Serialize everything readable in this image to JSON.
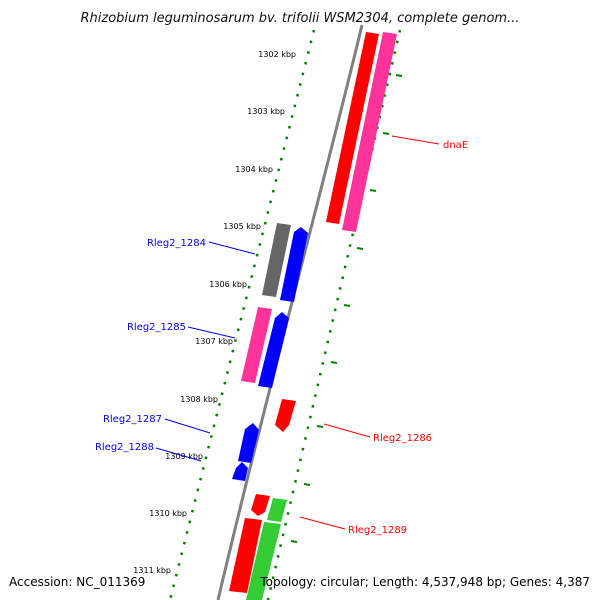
{
  "map": {
    "title": "Rhizobium leguminosarum bv. trifolii WSM2304, complete genom...",
    "accession": "Accession: NC_011369",
    "topology": "Topology: circular; Length: 4,537,948 bp; Genes: 4,387",
    "tick_labels": [
      "1302 kbp",
      "1303 kbp",
      "1304 kbp",
      "1305 kbp",
      "1306 kbp",
      "1307 kbp",
      "1308 kbp",
      "1309 kbp",
      "1310 kbp",
      "1311 kbp"
    ],
    "gene_labels": {
      "dnaE": "dnaE",
      "rleg2_1284": "Rleg2_1284",
      "rleg2_1285": "Rleg2_1285",
      "rleg2_1286": "Rleg2_1286",
      "rleg2_1287": "Rleg2_1287",
      "rleg2_1288": "Rleg2_1288",
      "rleg2_1289": "Rleg2_1289"
    }
  },
  "colors": {
    "red": "#ff0000",
    "pink": "#ff3399",
    "blue": "#0000ff",
    "gray": "#666666",
    "green": "#33cc33",
    "tick_green": "#008000",
    "backbone": "#808080"
  }
}
